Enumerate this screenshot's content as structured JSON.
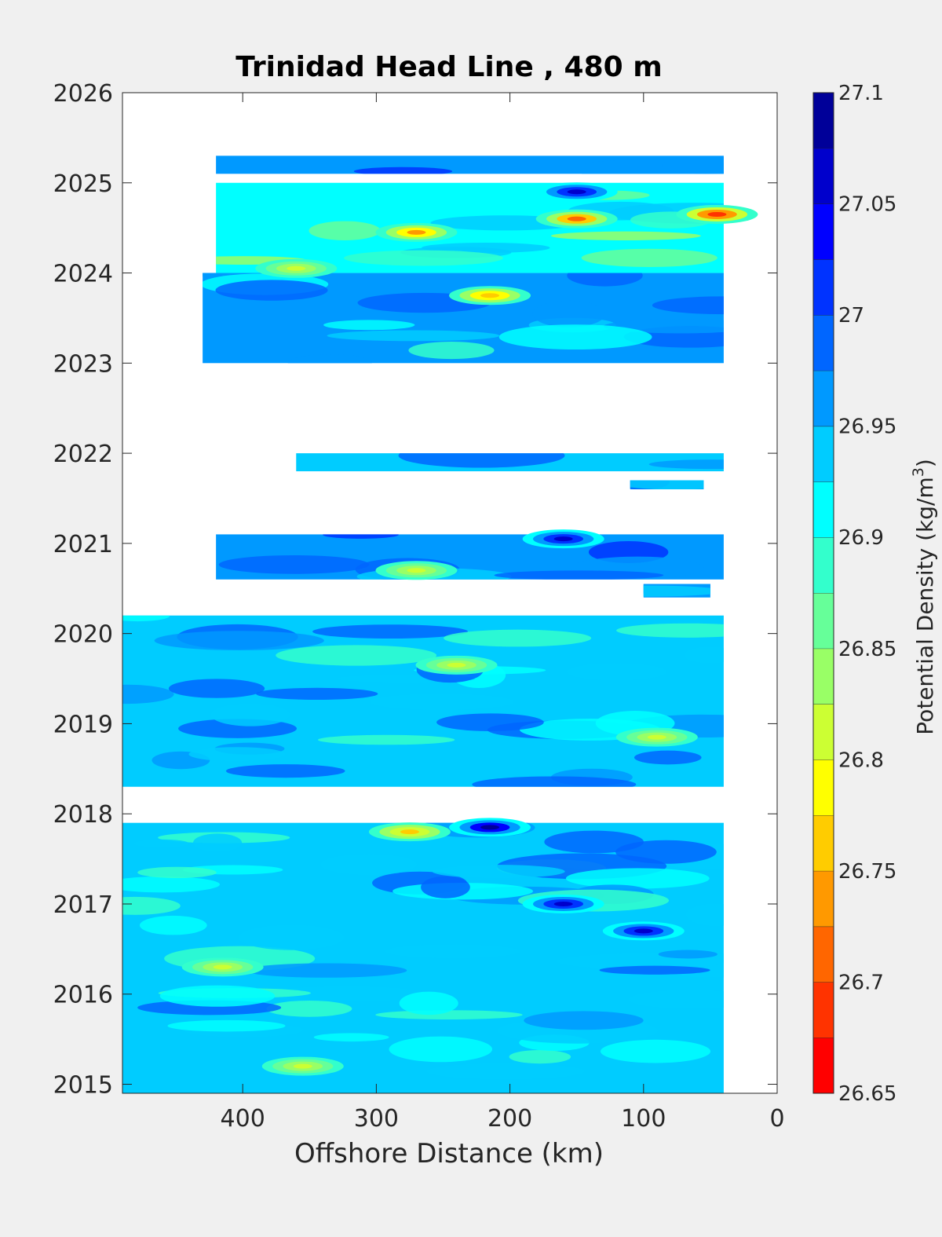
{
  "chart_data": {
    "type": "heatmap",
    "title": "Trinidad Head Line , 480 m",
    "xlabel": "Offshore Distance (km)",
    "colorbar_label_prefix": "Potential Density (kg/m",
    "colorbar_label_exp": "3",
    "colorbar_label_suffix": ")",
    "x_ticks": [
      "400",
      "300",
      "200",
      "100",
      "0"
    ],
    "x_tick_values": [
      400,
      300,
      200,
      100,
      0
    ],
    "y_ticks": [
      "2015",
      "2016",
      "2017",
      "2018",
      "2019",
      "2020",
      "2021",
      "2022",
      "2023",
      "2024",
      "2025",
      "2026"
    ],
    "y_tick_values": [
      2015,
      2016,
      2017,
      2018,
      2019,
      2020,
      2021,
      2022,
      2023,
      2024,
      2025,
      2026
    ],
    "xlim": [
      490,
      0
    ],
    "x_reversed": true,
    "ylim": [
      2014.9,
      2026
    ],
    "colorbar_ticks": [
      "27.1",
      "27.05",
      "27",
      "26.95",
      "26.9",
      "26.85",
      "26.8",
      "26.75",
      "26.7",
      "26.65"
    ],
    "colorbar_range": [
      26.65,
      27.1
    ],
    "colorbar_levels": [
      26.65,
      26.675,
      26.7,
      26.725,
      26.75,
      26.775,
      26.8,
      26.825,
      26.85,
      26.875,
      26.9,
      26.925,
      26.95,
      26.975,
      27.0,
      27.025,
      27.05,
      27.075,
      27.1
    ],
    "colormap": [
      "#ff0000",
      "#ff3300",
      "#ff6600",
      "#ff9900",
      "#ffcc00",
      "#ffff00",
      "#ccff33",
      "#99ff66",
      "#66ff99",
      "#33ffcc",
      "#00ffff",
      "#00ccff",
      "#0099ff",
      "#0066ff",
      "#0033ff",
      "#0000ff",
      "#0000cc",
      "#000099"
    ],
    "data_bands": [
      {
        "y_start": 2014.9,
        "y_end": 2017.9,
        "x_near": 40,
        "x_far": 490,
        "mean": 26.93
      },
      {
        "y_start": 2018.3,
        "y_end": 2020.2,
        "x_near": 40,
        "x_far": 490,
        "mean": 26.94
      },
      {
        "y_start": 2020.4,
        "y_end": 2020.55,
        "x_near": 50,
        "x_far": 100,
        "mean": 26.95
      },
      {
        "y_start": 2020.6,
        "y_end": 2021.1,
        "x_near": 40,
        "x_far": 420,
        "mean": 26.96
      },
      {
        "y_start": 2021.6,
        "y_end": 2021.7,
        "x_near": 55,
        "x_far": 110,
        "mean": 26.95
      },
      {
        "y_start": 2021.8,
        "y_end": 2022.0,
        "x_near": 40,
        "x_far": 360,
        "mean": 26.93
      },
      {
        "y_start": 2023.0,
        "y_end": 2024.0,
        "x_near": 40,
        "x_far": 430,
        "mean": 26.95
      },
      {
        "y_start": 2024.0,
        "y_end": 2025.0,
        "x_near": 40,
        "x_far": 420,
        "mean": 26.9
      },
      {
        "y_start": 2025.1,
        "y_end": 2025.3,
        "x_near": 40,
        "x_far": 420,
        "mean": 26.96
      }
    ],
    "anomalies": [
      {
        "x": 45,
        "y": 2024.65,
        "value": 26.68
      },
      {
        "x": 150,
        "y": 2024.6,
        "value": 26.72
      },
      {
        "x": 270,
        "y": 2024.45,
        "value": 26.74
      },
      {
        "x": 215,
        "y": 2023.75,
        "value": 26.75
      },
      {
        "x": 360,
        "y": 2024.05,
        "value": 26.8
      },
      {
        "x": 150,
        "y": 2024.9,
        "value": 27.06
      },
      {
        "x": 240,
        "y": 2019.65,
        "value": 26.8
      },
      {
        "x": 90,
        "y": 2018.85,
        "value": 26.82
      },
      {
        "x": 275,
        "y": 2017.8,
        "value": 26.76
      },
      {
        "x": 215,
        "y": 2017.85,
        "value": 27.08
      },
      {
        "x": 415,
        "y": 2016.3,
        "value": 26.81
      },
      {
        "x": 355,
        "y": 2015.2,
        "value": 26.82
      },
      {
        "x": 160,
        "y": 2021.05,
        "value": 27.07
      },
      {
        "x": 270,
        "y": 2020.7,
        "value": 26.82
      },
      {
        "x": 160,
        "y": 2017.0,
        "value": 27.05
      },
      {
        "x": 100,
        "y": 2016.7,
        "value": 27.05
      }
    ]
  }
}
